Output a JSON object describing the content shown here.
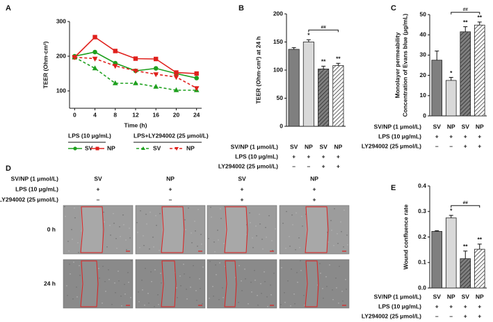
{
  "chart_data": [
    {
      "type": "line",
      "panel": "A",
      "ylabel": "TEER (Ohm·cm²)",
      "xlabel": "Time (h)",
      "x": [
        0,
        4,
        8,
        12,
        16,
        20,
        24
      ],
      "xlim": [
        -1,
        25
      ],
      "xticks": [
        0,
        4,
        8,
        12,
        16,
        20,
        24
      ],
      "ylim": [
        50,
        300
      ],
      "yticks": [
        100,
        200,
        300
      ],
      "legend_groups": [
        "LPS (10 μg/mL)",
        "LPS+LY294002 (25 μmol/L)"
      ],
      "series": [
        {
          "name": "SV",
          "color": "#1ea01e",
          "dash": false,
          "marker": "circle",
          "values": [
            200,
            212,
            180,
            158,
            165,
            150,
            137
          ]
        },
        {
          "name": "NP",
          "color": "#e0201c",
          "dash": false,
          "marker": "square",
          "values": [
            197,
            255,
            215,
            193,
            192,
            153,
            150
          ]
        },
        {
          "name": "SV",
          "color": "#1ea01e",
          "dash": true,
          "marker": "triangle",
          "values": [
            197,
            165,
            122,
            122,
            112,
            102,
            102
          ]
        },
        {
          "name": "NP",
          "color": "#e0201c",
          "dash": true,
          "marker": "triangle-down",
          "values": [
            197,
            193,
            172,
            158,
            148,
            140,
            108
          ]
        }
      ]
    },
    {
      "type": "bar",
      "panel": "B",
      "ylabel": "TEER (Ohm·cm²) at 24 h",
      "ylim": [
        0,
        200
      ],
      "yticks": [
        0,
        50,
        100,
        150,
        200
      ],
      "categories": [
        "SV",
        "NP",
        "SV",
        "NP"
      ],
      "values": [
        137,
        150,
        102,
        108
      ],
      "errors": [
        3,
        4,
        5,
        4
      ],
      "colors": [
        "#7f7f7f",
        "#d9d9d9",
        "#7f7f7f",
        "#ffffff"
      ],
      "hatch": [
        false,
        false,
        true,
        true
      ],
      "annotations": [
        null,
        "*",
        "**",
        "**"
      ],
      "bracket_label": "##",
      "row_labels": [
        "SV/NP (1 μmol/L)",
        "LPS (10 μg/mL)",
        "LY294002 (25 μmol/L)"
      ],
      "treatment_rows": [
        [
          "+",
          "+",
          "+",
          "+"
        ],
        [
          "–",
          "–",
          "+",
          "+"
        ]
      ]
    },
    {
      "type": "bar",
      "panel": "C",
      "ylabel": [
        "Monolayer permeability",
        "Concentration of Evans blue (μg/mL)"
      ],
      "ylim": [
        0,
        50
      ],
      "yticks": [
        0,
        10,
        20,
        30,
        40,
        50
      ],
      "categories": [
        "SV",
        "NP",
        "SV",
        "NP"
      ],
      "values": [
        27.5,
        17.5,
        41.5,
        44.8
      ],
      "errors": [
        4.5,
        1.5,
        2.5,
        1.5
      ],
      "colors": [
        "#7f7f7f",
        "#d9d9d9",
        "#7f7f7f",
        "#ffffff"
      ],
      "hatch": [
        false,
        false,
        true,
        true
      ],
      "annotations": [
        null,
        "*",
        "**",
        "**"
      ],
      "bracket_label": "##",
      "row_labels": [
        "SV/NP (1 μmol/L)",
        "LPS (10 μg/mL)",
        "LY294002 (25 μmol/L)"
      ],
      "treatment_rows": [
        [
          "+",
          "+",
          "+",
          "+"
        ],
        [
          "–",
          "–",
          "+",
          "+"
        ]
      ]
    },
    {
      "type": "bar",
      "panel": "E",
      "ylabel": "Wound confluence rate",
      "ylim": [
        0,
        0.4
      ],
      "yticks": [
        {
          "value": 0,
          "label": "0.0"
        },
        0.1,
        0.2,
        0.3,
        0.4
      ],
      "categories": [
        "SV",
        "NP",
        "SV",
        "NP"
      ],
      "values": [
        0.222,
        0.275,
        0.115,
        0.152
      ],
      "errors": [
        0.003,
        0.01,
        0.03,
        0.02
      ],
      "colors": [
        "#7f7f7f",
        "#d9d9d9",
        "#7f7f7f",
        "#ffffff"
      ],
      "hatch": [
        false,
        false,
        true,
        true
      ],
      "annotations": [
        null,
        "*",
        "**",
        "**"
      ],
      "bracket_label": "##",
      "row_labels": [
        "SV/NP (1 μmol/L)",
        "LPS (10 μg/mL)",
        "LY294002 (25 μmol/L)"
      ],
      "treatment_rows": [
        [
          "+",
          "+",
          "+",
          "+"
        ],
        [
          "–",
          "–",
          "+",
          "+"
        ]
      ]
    }
  ],
  "wound_panel": {
    "panel": "D",
    "row_labels": [
      "SV/NP (1 μmol/L)",
      "LPS (10 μg/mL)",
      "LY294002 (25 μmol/L)"
    ],
    "columns": [
      "SV",
      "NP",
      "SV",
      "NP"
    ],
    "treatment_rows": [
      [
        "+",
        "+",
        "+",
        "+"
      ],
      [
        "–",
        "–",
        "+",
        "+"
      ]
    ],
    "time_labels": [
      "0 h",
      "24 h"
    ]
  }
}
